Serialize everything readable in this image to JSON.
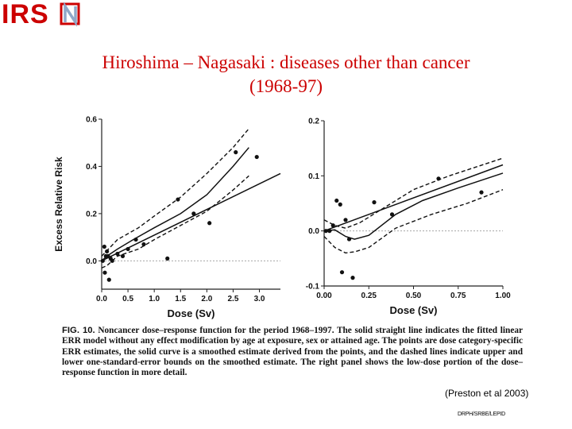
{
  "logo": {
    "text": "IRSN",
    "main_color": "#cc0000",
    "accent_color": "#8fa8c8"
  },
  "title": {
    "line1": "Hiroshima – Nagasaki : diseases other than cancer",
    "line2": "(1968-97)",
    "color": "#cc0000"
  },
  "chart_data": [
    {
      "type": "scatter",
      "panel": "left",
      "xlabel": "Dose (Sv)",
      "ylabel": "Excess Relative Risk",
      "xlim": [
        0,
        3.4
      ],
      "ylim": [
        -0.12,
        0.6
      ],
      "xticks": [
        "0.0",
        "0.5",
        "1.0",
        "1.5",
        "2.0",
        "2.5",
        "3.0"
      ],
      "xtick_values": [
        0,
        0.5,
        1.0,
        1.5,
        2.0,
        2.5,
        3.0
      ],
      "yticks": [
        "0.0",
        "0.2",
        "0.4",
        "0.6"
      ],
      "ytick_values": [
        0,
        0.2,
        0.4,
        0.6
      ],
      "points": [
        {
          "x": 0.02,
          "y": 0.0
        },
        {
          "x": 0.05,
          "y": 0.06
        },
        {
          "x": 0.06,
          "y": -0.05
        },
        {
          "x": 0.08,
          "y": 0.02
        },
        {
          "x": 0.1,
          "y": 0.04
        },
        {
          "x": 0.12,
          "y": 0.02
        },
        {
          "x": 0.14,
          "y": -0.08
        },
        {
          "x": 0.17,
          "y": 0.01
        },
        {
          "x": 0.2,
          "y": 0.0
        },
        {
          "x": 0.3,
          "y": 0.03
        },
        {
          "x": 0.4,
          "y": 0.02
        },
        {
          "x": 0.5,
          "y": 0.05
        },
        {
          "x": 0.65,
          "y": 0.09
        },
        {
          "x": 0.8,
          "y": 0.07
        },
        {
          "x": 1.25,
          "y": 0.01
        },
        {
          "x": 1.45,
          "y": 0.26
        },
        {
          "x": 1.75,
          "y": 0.2
        },
        {
          "x": 2.05,
          "y": 0.16
        },
        {
          "x": 2.55,
          "y": 0.46
        },
        {
          "x": 2.95,
          "y": 0.44
        }
      ],
      "linear_fit": [
        [
          0,
          0.0
        ],
        [
          3.4,
          0.37
        ]
      ],
      "smoothed": [
        [
          0,
          0.0
        ],
        [
          0.1,
          0.02
        ],
        [
          0.3,
          0.05
        ],
        [
          0.6,
          0.09
        ],
        [
          1.0,
          0.14
        ],
        [
          1.5,
          0.2
        ],
        [
          2.0,
          0.28
        ],
        [
          2.5,
          0.4
        ],
        [
          2.8,
          0.48
        ]
      ],
      "upper_bound": [
        [
          0,
          0.02
        ],
        [
          0.3,
          0.09
        ],
        [
          0.7,
          0.14
        ],
        [
          1.0,
          0.19
        ],
        [
          1.5,
          0.27
        ],
        [
          2.0,
          0.37
        ],
        [
          2.5,
          0.48
        ],
        [
          2.8,
          0.56
        ]
      ],
      "lower_bound": [
        [
          0,
          -0.03
        ],
        [
          0.1,
          -0.02
        ],
        [
          0.3,
          0.02
        ],
        [
          0.7,
          0.05
        ],
        [
          1.0,
          0.09
        ],
        [
          1.5,
          0.15
        ],
        [
          2.0,
          0.21
        ],
        [
          2.5,
          0.3
        ],
        [
          2.8,
          0.36
        ]
      ],
      "zero_line": true
    },
    {
      "type": "scatter",
      "panel": "right",
      "xlabel": "Dose (Sv)",
      "ylabel": "",
      "xlim": [
        0,
        1.0
      ],
      "ylim": [
        -0.1,
        0.2
      ],
      "xticks": [
        "0.00",
        "0.25",
        "0.50",
        "0.75",
        "1.00"
      ],
      "xtick_values": [
        0,
        0.25,
        0.5,
        0.75,
        1.0
      ],
      "yticks": [
        "-0.1",
        "0.0",
        "0.1",
        "0.2"
      ],
      "ytick_values": [
        -0.1,
        0.0,
        0.1,
        0.2
      ],
      "points": [
        {
          "x": 0.01,
          "y": 0.0
        },
        {
          "x": 0.03,
          "y": 0.0
        },
        {
          "x": 0.05,
          "y": 0.01
        },
        {
          "x": 0.07,
          "y": 0.055
        },
        {
          "x": 0.09,
          "y": 0.048
        },
        {
          "x": 0.1,
          "y": -0.075
        },
        {
          "x": 0.12,
          "y": 0.02
        },
        {
          "x": 0.14,
          "y": -0.015
        },
        {
          "x": 0.16,
          "y": -0.085
        },
        {
          "x": 0.28,
          "y": 0.052
        },
        {
          "x": 0.38,
          "y": 0.03
        },
        {
          "x": 0.64,
          "y": 0.095
        },
        {
          "x": 0.88,
          "y": 0.07
        }
      ],
      "linear_fit": [
        [
          0,
          0.0
        ],
        [
          1.0,
          0.12
        ]
      ],
      "smoothed": [
        [
          0,
          0.0
        ],
        [
          0.06,
          0.002
        ],
        [
          0.12,
          -0.01
        ],
        [
          0.17,
          -0.015
        ],
        [
          0.25,
          -0.008
        ],
        [
          0.4,
          0.03
        ],
        [
          0.55,
          0.055
        ],
        [
          0.75,
          0.078
        ],
        [
          1.0,
          0.105
        ]
      ],
      "upper_bound": [
        [
          0,
          0.02
        ],
        [
          0.06,
          0.01
        ],
        [
          0.12,
          0.005
        ],
        [
          0.2,
          0.015
        ],
        [
          0.3,
          0.035
        ],
        [
          0.5,
          0.075
        ],
        [
          0.7,
          0.1
        ],
        [
          1.0,
          0.132
        ]
      ],
      "lower_bound": [
        [
          0,
          -0.01
        ],
        [
          0.06,
          -0.03
        ],
        [
          0.12,
          -0.04
        ],
        [
          0.17,
          -0.038
        ],
        [
          0.25,
          -0.03
        ],
        [
          0.4,
          0.005
        ],
        [
          0.6,
          0.03
        ],
        [
          0.8,
          0.05
        ],
        [
          1.0,
          0.075
        ]
      ],
      "zero_line": true
    }
  ],
  "caption": {
    "fig_label": "FIG. 10.",
    "text": "Noncancer dose–response function for the period 1968–1997. The solid straight line indicates the fitted linear ERR model without any effect modification by age at exposure, sex or attained age. The points are dose category-specific ERR estimates, the solid curve is a smoothed estimate derived from the points, and the dashed lines indicate upper and lower one-standard-error bounds on the smoothed estimate. The right panel shows the low-dose portion of the dose–response function in more detail."
  },
  "source": "(Preston et al 2003)",
  "footer": "DRPH/SRBE/LEPID"
}
